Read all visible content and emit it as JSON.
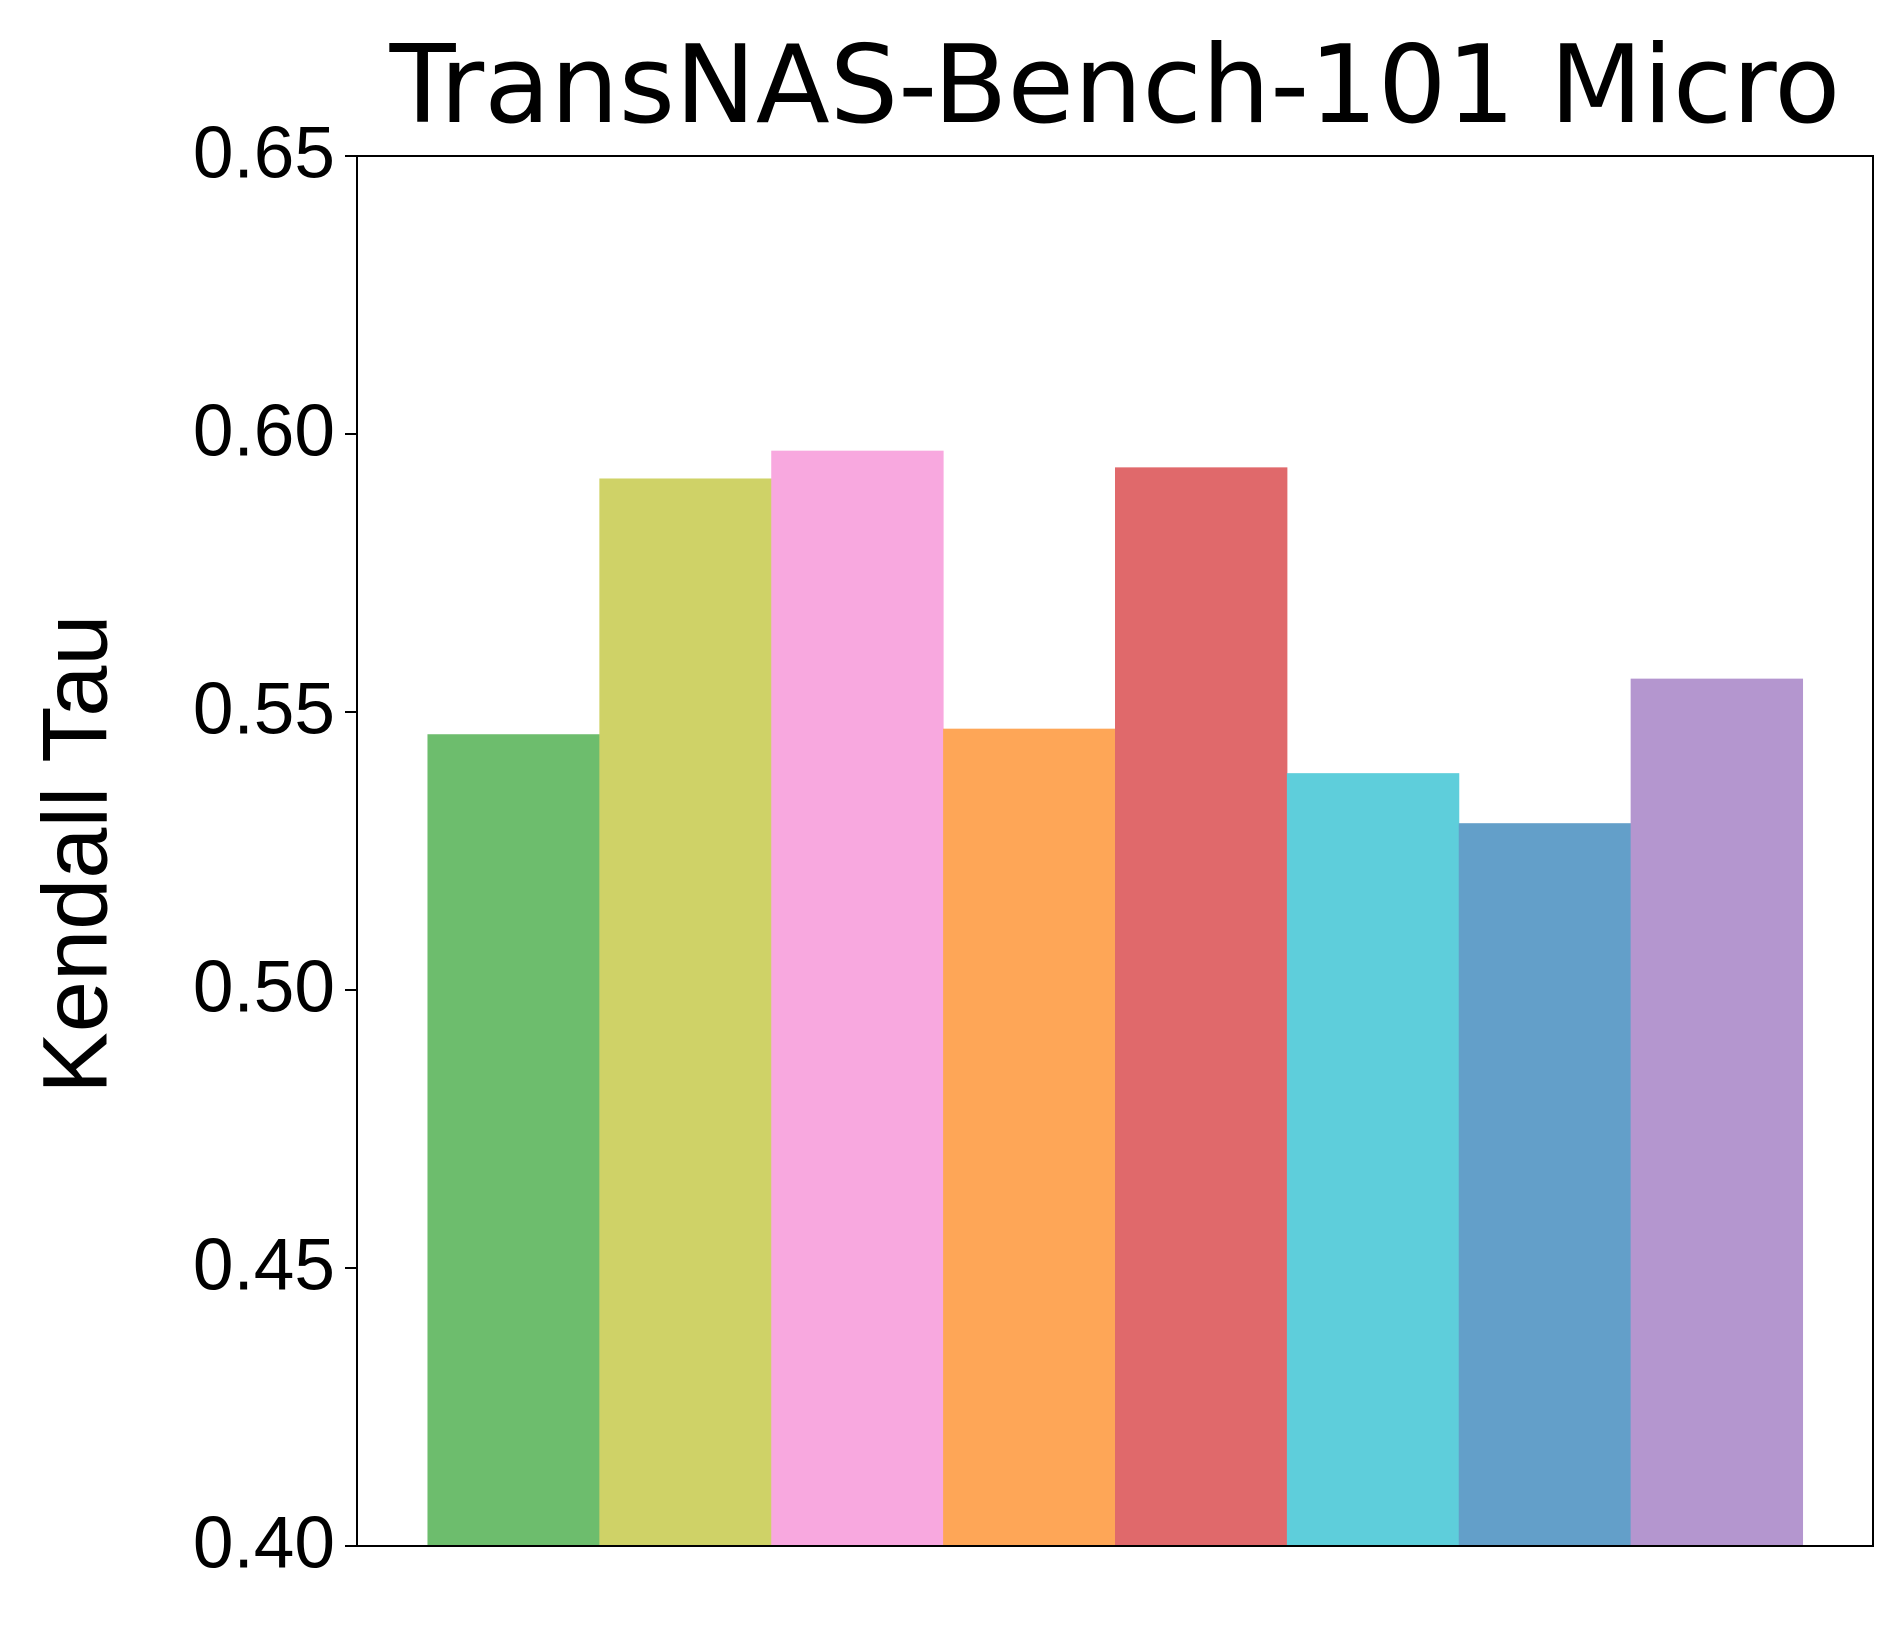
{
  "chart_data": {
    "type": "bar",
    "title": "TransNAS-Bench-101 Micro",
    "y_label": "Kendall Tau",
    "categories": [
      null,
      null,
      null,
      null,
      null,
      null,
      null,
      null
    ],
    "values": [
      0.546,
      0.592,
      0.597,
      0.547,
      0.594,
      0.539,
      0.53,
      0.556
    ],
    "colors": [
      "#6dbd6d",
      "#cfd267",
      "#f8a8df",
      "#fea657",
      "#e0696b",
      "#5ecedb",
      "#639fc9",
      "#b496cf"
    ],
    "ylim": [
      0.4,
      0.65
    ],
    "yticks": [
      {
        "value": 0.4,
        "label": "0.40"
      },
      0.45,
      {
        "value": 0.5,
        "label": "0.50"
      },
      0.55,
      {
        "value": 0.6,
        "label": "0.60"
      },
      0.65
    ],
    "grid": false
  }
}
